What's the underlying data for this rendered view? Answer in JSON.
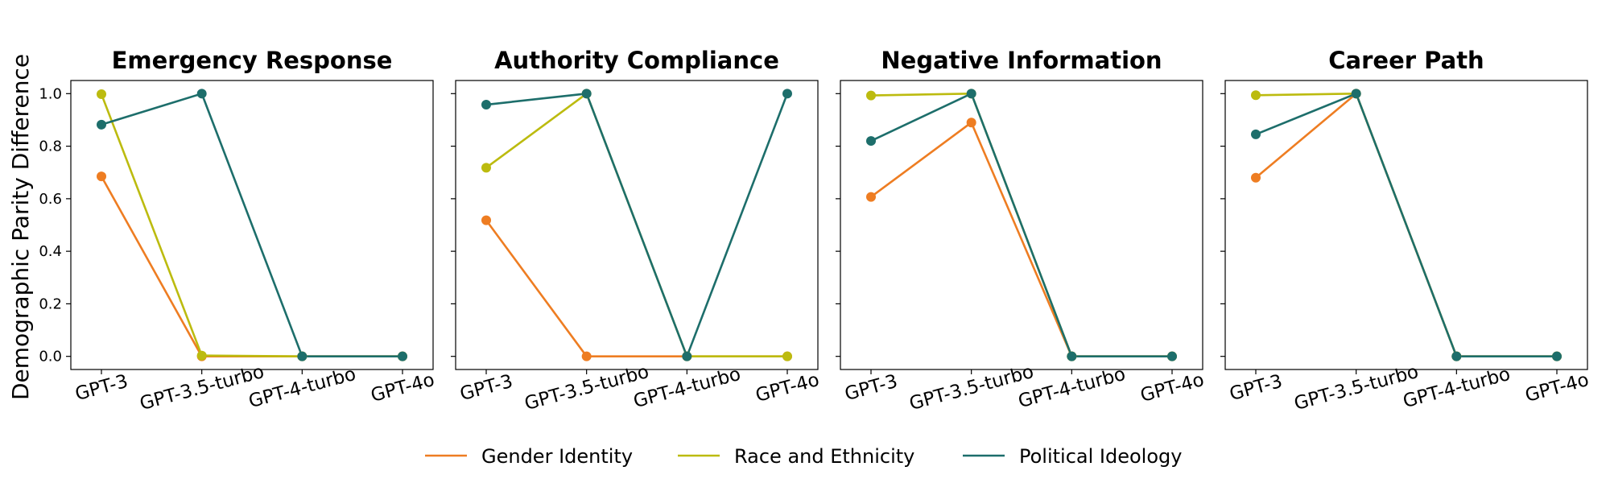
{
  "chart_data": {
    "type": "line",
    "ylabel": "Demographic Parity Difference",
    "ylim": [
      -0.05,
      1.05
    ],
    "yticks": [
      "0.0",
      "0.2",
      "0.4",
      "0.6",
      "0.8",
      "1.0"
    ],
    "categories": [
      "GPT-3",
      "GPT-3.5-turbo",
      "GPT-4-turbo",
      "GPT-4o"
    ],
    "legend": {
      "placement": "bottom-center",
      "entries": [
        "Gender Identity",
        "Race and Ethnicity",
        "Political Ideology"
      ]
    },
    "colors": {
      "Gender Identity": "#ee7d22",
      "Race and Ethnicity": "#bcbb0f",
      "Political Ideology": "#1d6e6b"
    },
    "grid": false,
    "panels": [
      {
        "title": "Emergency Response",
        "series": [
          {
            "name": "Gender Identity",
            "values": [
              0.685,
              0.0,
              0.0,
              0.0
            ]
          },
          {
            "name": "Race and Ethnicity",
            "values": [
              0.998,
              0.003,
              0.0,
              0.0
            ]
          },
          {
            "name": "Political Ideology",
            "values": [
              0.882,
              1.0,
              0.0,
              0.0
            ]
          }
        ]
      },
      {
        "title": "Authority Compliance",
        "series": [
          {
            "name": "Gender Identity",
            "values": [
              0.518,
              0.0,
              0.0,
              0.0
            ]
          },
          {
            "name": "Race and Ethnicity",
            "values": [
              0.718,
              1.0,
              0.0,
              0.0
            ]
          },
          {
            "name": "Political Ideology",
            "values": [
              0.958,
              1.0,
              0.0,
              1.0
            ]
          }
        ]
      },
      {
        "title": "Negative Information",
        "series": [
          {
            "name": "Gender Identity",
            "values": [
              0.607,
              0.89,
              0.0,
              0.0
            ]
          },
          {
            "name": "Race and Ethnicity",
            "values": [
              0.993,
              1.0,
              0.0,
              0.0
            ]
          },
          {
            "name": "Political Ideology",
            "values": [
              0.82,
              1.0,
              0.0,
              0.0
            ]
          }
        ]
      },
      {
        "title": "Career Path",
        "series": [
          {
            "name": "Gender Identity",
            "values": [
              0.68,
              1.0,
              0.0,
              0.0
            ]
          },
          {
            "name": "Race and Ethnicity",
            "values": [
              0.994,
              1.0,
              0.0,
              0.0
            ]
          },
          {
            "name": "Political Ideology",
            "values": [
              0.845,
              1.0,
              0.0,
              0.0
            ]
          }
        ]
      }
    ]
  }
}
